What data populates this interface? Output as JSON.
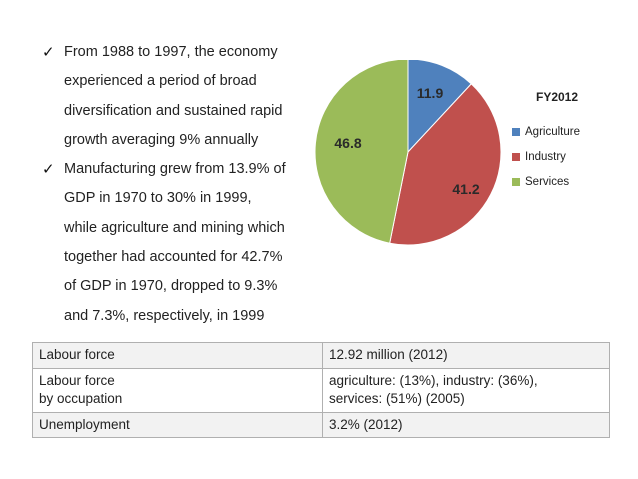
{
  "bullets": [
    {
      "icon": "checkmark-icon",
      "lines": [
        "From 1988 to 1997, the economy",
        "experienced a period of broad",
        "diversification and sustained rapid",
        "growth averaging 9% annually"
      ]
    },
    {
      "icon": "checkmark-icon",
      "lines": [
        "Manufacturing grew from 13.9% of",
        "GDP in 1970 to 30% in 1999,",
        "while agriculture and mining which",
        "together had accounted for 42.7%",
        "of GDP in 1970, dropped to 9.3%",
        "and 7.3%, respectively, in 1999"
      ]
    }
  ],
  "chart_data": {
    "type": "pie",
    "title": "FY2012",
    "categories": [
      "Agriculture",
      "Industry",
      "Services"
    ],
    "values": [
      11.9,
      41.2,
      46.8
    ],
    "data_labels": [
      "11.9",
      "41.2",
      "46.8"
    ],
    "colors": [
      "#4f81bd",
      "#c0504d",
      "#9bbb59"
    ],
    "legend_position": "right"
  },
  "table": {
    "rows": [
      {
        "key": [
          "Labour force"
        ],
        "value": [
          "12.92 million (2012)"
        ]
      },
      {
        "key": [
          "Labour force",
          "by occupation"
        ],
        "value": [
          "agriculture: (13%), industry: (36%),",
          "services: (51%) (2005)"
        ]
      },
      {
        "key": [
          "Unemployment"
        ],
        "value": [
          "3.2% (2012)"
        ]
      }
    ]
  }
}
